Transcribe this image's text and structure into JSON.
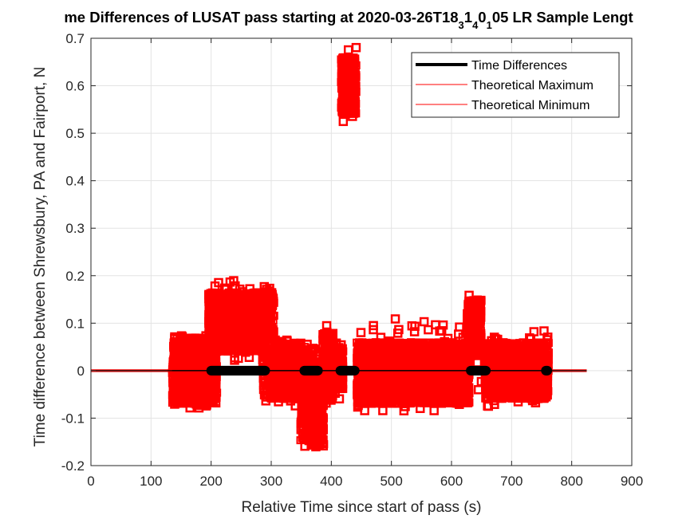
{
  "chart_data": {
    "type": "scatter",
    "title": "me Differences of LUSAT pass starting at 2020-03-26T18_3 1_4 0_1 05 LR Sample Lengt",
    "title_parts": {
      "a": "me Differences of LUSAT pass starting at 2020-03-26T18",
      "s1": "3",
      "b": "1",
      "s2": "4",
      "c": "0",
      "s3": "1",
      "d": "05 LR Sample Lengt"
    },
    "xlabel": "Relative Time since start of pass (s)",
    "ylabel": "Time difference between Shrewsbury, PA and Fairport, N",
    "xlim": [
      0,
      900
    ],
    "ylim": [
      -0.2,
      0.7
    ],
    "x_ticks": [
      0,
      100,
      200,
      300,
      400,
      500,
      600,
      700,
      800,
      900
    ],
    "y_ticks": [
      -0.2,
      -0.1,
      0,
      0.1,
      0.2,
      0.3,
      0.4,
      0.5,
      0.6,
      0.7
    ],
    "grid": true,
    "legend_position": "top-right",
    "legend": [
      {
        "label": "Time Differences",
        "color": "#000000",
        "style": "thick-line"
      },
      {
        "label": "Theoretical Maximum",
        "color": "#ff0000",
        "style": "thin-line"
      },
      {
        "label": "Theoretical Minimum",
        "color": "#ff0000",
        "style": "thin-line"
      }
    ],
    "series": [
      {
        "name": "Time Differences",
        "color": "#000000",
        "line_segments": [
          [
            0,
            825
          ]
        ],
        "marker_runs": [
          [
            200,
            290
          ],
          [
            355,
            378
          ],
          [
            415,
            440
          ],
          [
            632,
            658
          ],
          [
            757,
            760
          ]
        ],
        "y": 0
      },
      {
        "name": "Theoretical Maximum",
        "color": "#ff0000",
        "line_segments": [
          [
            0,
            135
          ],
          [
            760,
            825
          ]
        ],
        "y": 0.002
      },
      {
        "name": "Theoretical Minimum",
        "color": "#ff0000",
        "line_segments": [
          [
            0,
            135
          ],
          [
            760,
            825
          ]
        ],
        "y": -0.002
      }
    ],
    "scatter_clusters": [
      {
        "x": [
          135,
          210
        ],
        "y": [
          -0.07,
          0.07
        ],
        "scatter": [
          -0.08,
          0.075
        ]
      },
      {
        "x": [
          195,
          290
        ],
        "y": [
          0.04,
          0.165
        ],
        "scatter": [
          0.02,
          0.19
        ]
      },
      {
        "x": [
          285,
          305
        ],
        "y": [
          -0.06,
          0.17
        ],
        "scatter": [
          -0.075,
          0.18
        ]
      },
      {
        "x": [
          305,
          348
        ],
        "y": [
          -0.06,
          0.06
        ],
        "scatter": [
          -0.075,
          0.065
        ]
      },
      {
        "x": [
          348,
          375
        ],
        "y": [
          -0.15,
          0.05
        ],
        "scatter": [
          -0.165,
          0.06
        ]
      },
      {
        "x": [
          365,
          388
        ],
        "y": [
          -0.16,
          0.02
        ],
        "scatter": [
          -0.165,
          0.03
        ]
      },
      {
        "x": [
          385,
          405
        ],
        "y": [
          -0.06,
          0.08
        ],
        "scatter": [
          -0.075,
          0.095
        ]
      },
      {
        "x": [
          405,
          420
        ],
        "y": [
          -0.04,
          0.05
        ],
        "scatter": [
          -0.06,
          0.06
        ]
      },
      {
        "x": [
          416,
          442
        ],
        "y": [
          0.54,
          0.66
        ],
        "scatter": [
          0.52,
          0.69
        ]
      },
      {
        "x": [
          442,
          630
        ],
        "y": [
          -0.07,
          0.06
        ],
        "scatter": [
          -0.09,
          0.11
        ]
      },
      {
        "x": [
          625,
          650
        ],
        "y": [
          0.03,
          0.15
        ],
        "scatter": [
          -0.05,
          0.16
        ]
      },
      {
        "x": [
          655,
          762
        ],
        "y": [
          -0.06,
          0.06
        ],
        "scatter": [
          -0.075,
          0.085
        ]
      }
    ]
  }
}
